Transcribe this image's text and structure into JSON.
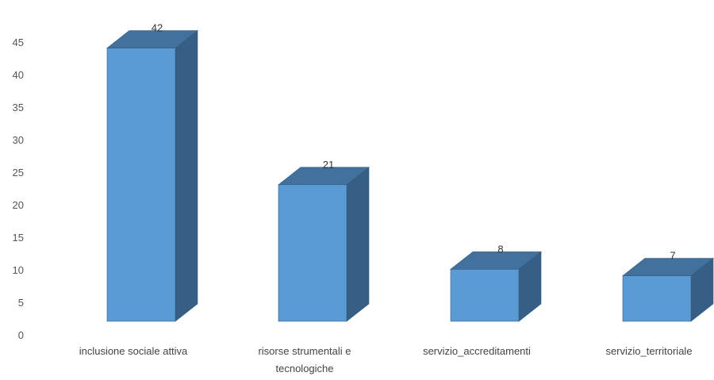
{
  "chart_data": {
    "type": "bar",
    "style": "3d-column",
    "categories": [
      [
        "inclusione sociale attiva"
      ],
      [
        "risorse strumentali e",
        "tecnologiche"
      ],
      [
        "servizio_accreditamenti"
      ],
      [
        "servizio_territoriale"
      ]
    ],
    "values": [
      42,
      21,
      8,
      7
    ],
    "data_labels": [
      "42",
      "21",
      "8",
      "7"
    ],
    "ylim": [
      0,
      45
    ],
    "yticks": [
      "0",
      "5",
      "10",
      "15",
      "20",
      "25",
      "30",
      "35",
      "40",
      "45"
    ],
    "grid": false,
    "legend": "none",
    "colors": {
      "front": "#5b9bd5",
      "top": "#41719c",
      "side": "#375f86",
      "edge": "#2f5b82"
    }
  }
}
